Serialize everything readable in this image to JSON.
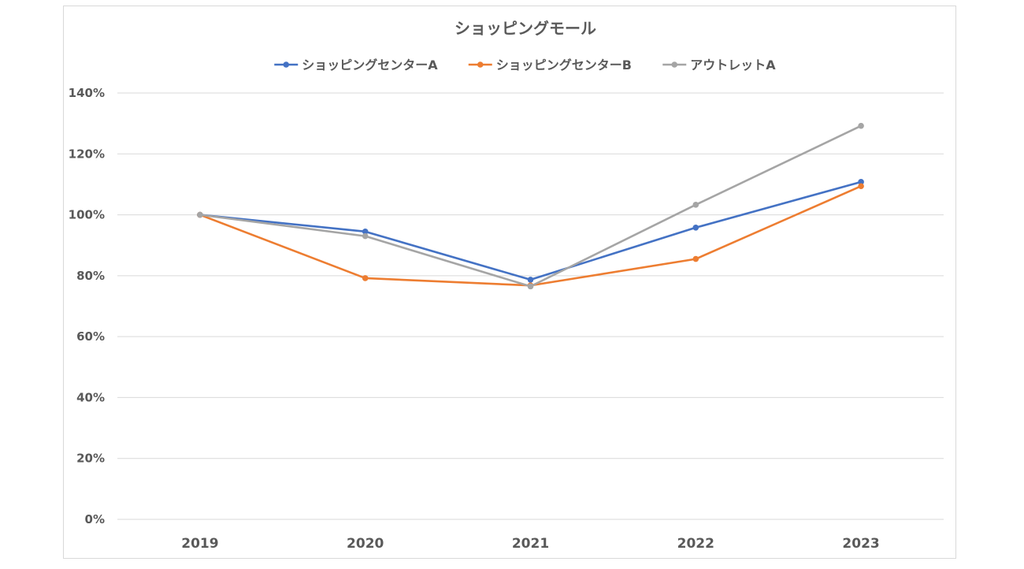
{
  "chart_data": {
    "type": "line",
    "title": "ショッピングモール",
    "xlabel": "",
    "ylabel": "",
    "categories": [
      "2019",
      "2020",
      "2021",
      "2022",
      "2023"
    ],
    "ylim": [
      0,
      1.4
    ],
    "yticks": [
      0,
      0.2,
      0.4,
      0.6,
      0.8,
      1.0,
      1.2,
      1.4
    ],
    "ytick_labels": [
      "0%",
      "20%",
      "40%",
      "60%",
      "80%",
      "100%",
      "120%",
      "140%"
    ],
    "grid": true,
    "legend_position": "top",
    "series": [
      {
        "name": "ショッピングセンターA",
        "color": "#4472c4",
        "values": [
          1.0,
          0.945,
          0.787,
          0.958,
          1.108
        ]
      },
      {
        "name": "ショッピングセンターB",
        "color": "#ed7d31",
        "values": [
          1.0,
          0.792,
          0.768,
          0.855,
          1.094
        ]
      },
      {
        "name": "アウトレットA",
        "color": "#a5a5a5",
        "values": [
          1.0,
          0.93,
          0.765,
          1.033,
          1.292
        ]
      }
    ]
  }
}
